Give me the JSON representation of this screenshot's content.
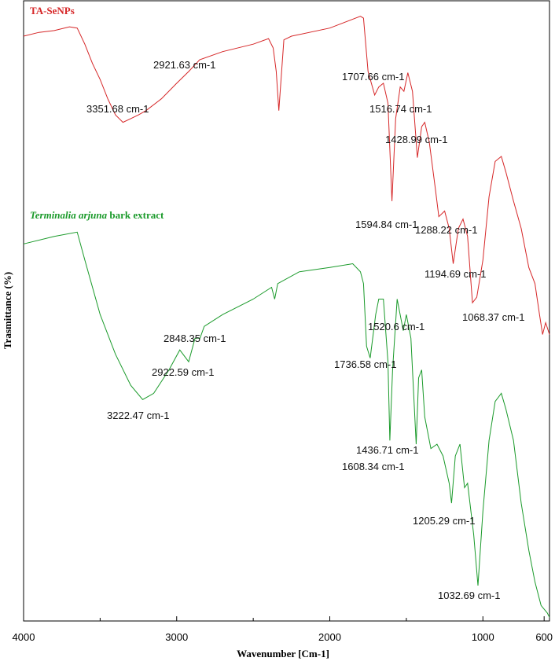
{
  "chart_data": {
    "type": "line",
    "xlabel": "Wavenumber [Cm-1]",
    "ylabel": "Trasmittance (%)",
    "xlim": [
      4000,
      565
    ],
    "ylim": [
      0,
      100
    ],
    "xticks": [
      4000,
      3000,
      2000,
      1000,
      600
    ],
    "xminor_ticks": [
      3500,
      2500,
      1500
    ],
    "series": [
      {
        "name": "TA-SeNPs",
        "color": "#d62728",
        "x": [
          4000,
          3900,
          3800,
          3700,
          3650,
          3600,
          3550,
          3500,
          3450,
          3400,
          3351,
          3300,
          3250,
          3200,
          3100,
          3000,
          2921,
          2850,
          2700,
          2500,
          2400,
          2370,
          2350,
          2333,
          2300,
          2250,
          2000,
          1800,
          1780,
          1750,
          1707,
          1680,
          1650,
          1620,
          1594,
          1570,
          1540,
          1516,
          1490,
          1460,
          1428,
          1400,
          1380,
          1350,
          1310,
          1288,
          1250,
          1220,
          1194,
          1160,
          1130,
          1100,
          1068,
          1040,
          1000,
          960,
          920,
          880,
          850,
          800,
          750,
          700,
          660,
          630,
          610,
          590,
          565
        ],
        "values": [
          94.3,
          94.9,
          95.2,
          95.8,
          95.6,
          93.0,
          89.9,
          87.3,
          84.2,
          81.6,
          80.4,
          81.0,
          81.6,
          82.3,
          84.2,
          86.7,
          88.6,
          90.5,
          91.8,
          93.0,
          93.9,
          92.4,
          88.6,
          82.3,
          93.7,
          94.3,
          95.6,
          97.5,
          97.2,
          88.6,
          84.8,
          86.1,
          86.7,
          83.5,
          67.7,
          81.0,
          86.1,
          85.4,
          88.4,
          85.4,
          74.7,
          79.7,
          80.4,
          77.2,
          69.6,
          65.2,
          66.1,
          63.3,
          57.6,
          63.3,
          64.8,
          62.0,
          51.3,
          52.2,
          58.2,
          68.4,
          74.1,
          74.9,
          72.4,
          67.7,
          63.3,
          57.0,
          54.4,
          49.4,
          46.2,
          48.1,
          46.2
        ]
      },
      {
        "name": "Terminalia arjuna bark extract",
        "color": "#1a9a2a",
        "x": [
          4000,
          3800,
          3650,
          3600,
          3500,
          3400,
          3300,
          3222,
          3150,
          3050,
          2980,
          2922,
          2880,
          2848,
          2820,
          2700,
          2500,
          2380,
          2360,
          2340,
          2200,
          2000,
          1850,
          1800,
          1780,
          1760,
          1736,
          1700,
          1680,
          1650,
          1620,
          1608,
          1590,
          1560,
          1520,
          1500,
          1470,
          1436,
          1420,
          1400,
          1380,
          1340,
          1300,
          1260,
          1220,
          1205,
          1180,
          1150,
          1120,
          1100,
          1060,
          1032,
          1000,
          960,
          920,
          880,
          850,
          800,
          750,
          700,
          660,
          620,
          580,
          565
        ],
        "values": [
          60.8,
          62.0,
          62.7,
          58.2,
          49.4,
          43.0,
          38.0,
          35.7,
          36.7,
          40.5,
          43.7,
          41.8,
          45.6,
          45.6,
          47.5,
          49.4,
          51.9,
          53.8,
          51.9,
          54.4,
          56.3,
          57.0,
          57.6,
          56.3,
          54.4,
          44.3,
          42.4,
          49.4,
          51.9,
          51.9,
          41.8,
          29.1,
          40.5,
          51.9,
          46.8,
          49.4,
          45.6,
          28.5,
          39.2,
          40.5,
          32.9,
          27.8,
          28.5,
          26.6,
          22.2,
          19.0,
          26.6,
          28.5,
          21.5,
          22.2,
          13.9,
          5.7,
          17.7,
          29.1,
          35.4,
          36.7,
          34.2,
          29.1,
          19.0,
          11.4,
          6.3,
          2.5,
          1.3,
          0.6
        ]
      }
    ],
    "annotations": [
      "2921.63 cm-1",
      "3351.68 cm-1",
      "1707.66 cm-1",
      "1516.74 cm-1",
      "1428.99 cm-1",
      "1594.84 cm-1",
      "1288.22 cm-1",
      "1194.69 cm-1",
      "1068.37 cm-1",
      "2848.35 cm-1",
      "2922.59 cm-1",
      "3222.47 cm-1",
      "1520.6 cm-1",
      "1736.58 cm-1",
      "1436.71 cm-1",
      "1608.34 cm-1",
      "1205.29 cm-1",
      "1032.69 cm-1"
    ]
  }
}
